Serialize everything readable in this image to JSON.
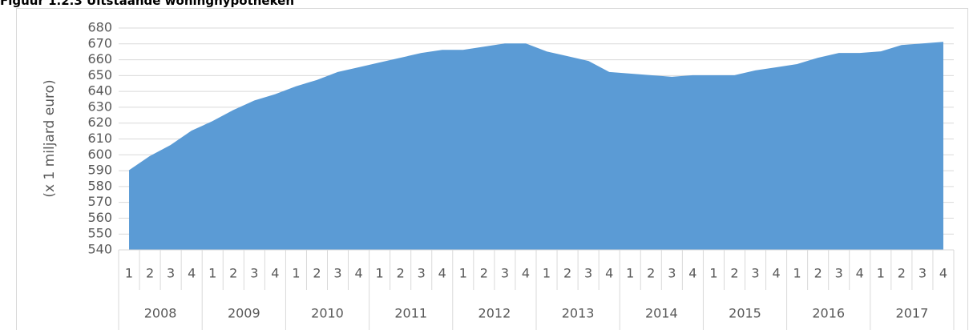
{
  "chart_data": {
    "type": "area",
    "title": "Figuur 1.2.3 Uitstaande woninghypotheken",
    "y_label": "(x 1 miljard euro)",
    "categories": [
      "1",
      "2",
      "3",
      "4",
      "1",
      "2",
      "3",
      "4",
      "1",
      "2",
      "3",
      "4",
      "1",
      "2",
      "3",
      "4",
      "1",
      "2",
      "3",
      "4",
      "1",
      "2",
      "3",
      "4",
      "1",
      "2",
      "3",
      "4",
      "1",
      "2",
      "3",
      "4",
      "1",
      "2",
      "3",
      "4",
      "1",
      "2",
      "3",
      "4"
    ],
    "groups": [
      "2008",
      "2009",
      "2010",
      "2011",
      "2012",
      "2013",
      "2014",
      "2015",
      "2016",
      "2017"
    ],
    "values": [
      590,
      599,
      606,
      615,
      621,
      628,
      634,
      638,
      643,
      647,
      652,
      655,
      658,
      661,
      664,
      666,
      666,
      668,
      670,
      670,
      665,
      662,
      659,
      652,
      651,
      650,
      649,
      650,
      650,
      650,
      653,
      655,
      657,
      661,
      664,
      664,
      665,
      669,
      670,
      671
    ],
    "color": "#5b9bd5",
    "ylim": [
      540,
      680
    ],
    "yticks": [
      540,
      550,
      560,
      570,
      580,
      590,
      600,
      610,
      620,
      630,
      640,
      650,
      660,
      670,
      680
    ],
    "grid": true
  }
}
